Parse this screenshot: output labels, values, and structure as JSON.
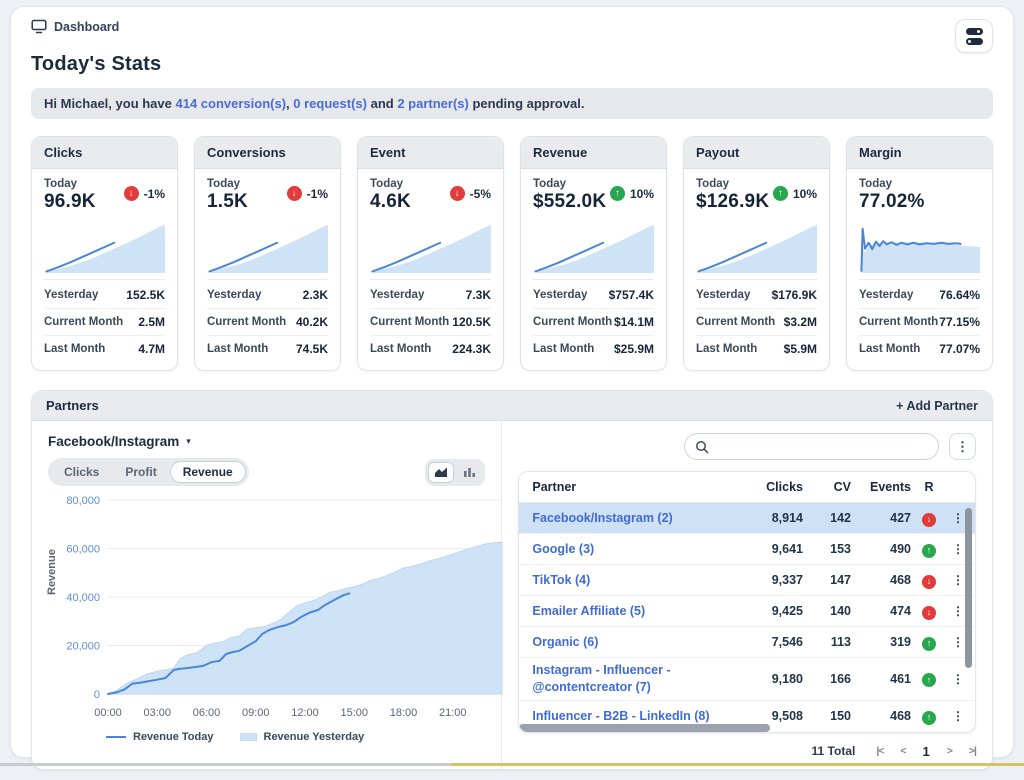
{
  "page": {
    "breadcrumb": "Dashboard",
    "title": "Today's Stats",
    "notification": {
      "prefix": "Hi Michael, you have ",
      "link1": "414 conversion(s)",
      "sep1": ", ",
      "link2": "0 request(s)",
      "sep2": " and ",
      "link3": "2 partner(s)",
      "suffix": " pending approval."
    }
  },
  "icons": {
    "caret": "▾",
    "kebab": "⋮",
    "arrow_up": "↑",
    "arrow_down": "↓"
  },
  "colors": {
    "accent_blue": "#4a86d8",
    "area_fill": "#cfe3f7",
    "area_edge": "#bcd6ef",
    "link_blue": "#4a6cd4",
    "red": "#e23b3b",
    "green": "#28a84e",
    "selected_row": "#cfe1f5",
    "ytick_blue": "#5e8ed8",
    "grid": "#e9edf1"
  },
  "stat_cards": [
    {
      "title": "Clicks",
      "today_label": "Today",
      "today_value": "96.9K",
      "badge": {
        "dir": "down",
        "value": "-1%"
      },
      "spark": "ramp",
      "rows": [
        {
          "label": "Yesterday",
          "value": "152.5K"
        },
        {
          "label": "Current Month",
          "value": "2.5M"
        },
        {
          "label": "Last Month",
          "value": "4.7M"
        }
      ]
    },
    {
      "title": "Conversions",
      "today_label": "Today",
      "today_value": "1.5K",
      "badge": {
        "dir": "down",
        "value": "-1%"
      },
      "spark": "ramp",
      "rows": [
        {
          "label": "Yesterday",
          "value": "2.3K"
        },
        {
          "label": "Current Month",
          "value": "40.2K"
        },
        {
          "label": "Last Month",
          "value": "74.5K"
        }
      ]
    },
    {
      "title": "Event",
      "today_label": "Today",
      "today_value": "4.6K",
      "badge": {
        "dir": "down",
        "value": "-5%"
      },
      "spark": "ramp",
      "rows": [
        {
          "label": "Yesterday",
          "value": "7.3K"
        },
        {
          "label": "Current Month",
          "value": "120.5K"
        },
        {
          "label": "Last Month",
          "value": "224.3K"
        }
      ]
    },
    {
      "title": "Revenue",
      "today_label": "Today",
      "today_value": "$552.0K",
      "badge": {
        "dir": "up",
        "value": "10%"
      },
      "spark": "ramp",
      "rows": [
        {
          "label": "Yesterday",
          "value": "$757.4K"
        },
        {
          "label": "Current Month",
          "value": "$14.1M"
        },
        {
          "label": "Last Month",
          "value": "$25.9M"
        }
      ]
    },
    {
      "title": "Payout",
      "today_label": "Today",
      "today_value": "$126.9K",
      "badge": {
        "dir": "up",
        "value": "10%"
      },
      "spark": "ramp",
      "rows": [
        {
          "label": "Yesterday",
          "value": "$176.9K"
        },
        {
          "label": "Current Month",
          "value": "$3.2M"
        },
        {
          "label": "Last Month",
          "value": "$5.9M"
        }
      ]
    },
    {
      "title": "Margin",
      "today_label": "Today",
      "today_value": "77.02%",
      "badge": null,
      "spark": "flat",
      "rows": [
        {
          "label": "Yesterday",
          "value": "76.64%"
        },
        {
          "label": "Current Month",
          "value": "77.15%"
        },
        {
          "label": "Last Month",
          "value": "77.07%"
        }
      ]
    }
  ],
  "sparks": {
    "ramp": {
      "line": [
        [
          2,
          97
        ],
        [
          12,
          89
        ],
        [
          22,
          80
        ],
        [
          32,
          70
        ],
        [
          42,
          60
        ],
        [
          52,
          50
        ],
        [
          58,
          44
        ]
      ],
      "area": [
        [
          2,
          98
        ],
        [
          10,
          93
        ],
        [
          18,
          89
        ],
        [
          26,
          84
        ],
        [
          34,
          78
        ],
        [
          42,
          71
        ],
        [
          50,
          63
        ],
        [
          58,
          55
        ],
        [
          66,
          47
        ],
        [
          74,
          39
        ],
        [
          82,
          30
        ],
        [
          90,
          21
        ],
        [
          96,
          14
        ],
        [
          100,
          11
        ]
      ]
    },
    "flat": {
      "line": [
        [
          2,
          96
        ],
        [
          3,
          18
        ],
        [
          5,
          55
        ],
        [
          8,
          44
        ],
        [
          11,
          56
        ],
        [
          14,
          42
        ],
        [
          17,
          50
        ],
        [
          20,
          41
        ],
        [
          23,
          47
        ],
        [
          27,
          43
        ],
        [
          31,
          48
        ],
        [
          35,
          44
        ],
        [
          40,
          47
        ],
        [
          45,
          44
        ],
        [
          50,
          47
        ],
        [
          56,
          45
        ],
        [
          62,
          46
        ],
        [
          68,
          44
        ],
        [
          74,
          46
        ],
        [
          80,
          45
        ],
        [
          84,
          46
        ]
      ],
      "area": [
        [
          2,
          96
        ],
        [
          3,
          50
        ],
        [
          5,
          62
        ],
        [
          8,
          50
        ],
        [
          12,
          46
        ],
        [
          18,
          44
        ],
        [
          24,
          43
        ],
        [
          32,
          44
        ],
        [
          40,
          44
        ],
        [
          48,
          44
        ],
        [
          56,
          44
        ],
        [
          64,
          44
        ],
        [
          72,
          45
        ],
        [
          80,
          48
        ],
        [
          88,
          50
        ],
        [
          100,
          52
        ]
      ]
    }
  },
  "partners": {
    "title": "Partners",
    "add_button": "+ Add Partner",
    "dropdown_label": "Facebook/Instagram",
    "tabs": [
      "Clicks",
      "Profit",
      "Revenue"
    ],
    "active_tab": "Revenue",
    "table": {
      "columns": [
        "Partner",
        "Clicks",
        "CV",
        "Events",
        "R"
      ],
      "rows": [
        {
          "partner": "Facebook/Instagram (2)",
          "clicks": "8,914",
          "cv": "142",
          "events": "427",
          "trend": "down",
          "selected": true
        },
        {
          "partner": "Google (3)",
          "clicks": "9,641",
          "cv": "153",
          "events": "490",
          "trend": "up",
          "selected": false
        },
        {
          "partner": "TikTok (4)",
          "clicks": "9,337",
          "cv": "147",
          "events": "468",
          "trend": "down",
          "selected": false
        },
        {
          "partner": "Emailer Affiliate (5)",
          "clicks": "9,425",
          "cv": "140",
          "events": "474",
          "trend": "down",
          "selected": false
        },
        {
          "partner": "Organic (6)",
          "clicks": "7,546",
          "cv": "113",
          "events": "319",
          "trend": "up",
          "selected": false
        },
        {
          "partner": "Instagram - Influencer - @contentcreator (7)",
          "clicks": "9,180",
          "cv": "166",
          "events": "461",
          "trend": "up",
          "selected": false
        },
        {
          "partner": "Influencer - B2B - LinkedIn (8)",
          "clicks": "9,508",
          "cv": "150",
          "events": "468",
          "trend": "up",
          "selected": false
        }
      ],
      "pagination": {
        "total": "11 Total",
        "first": "|<",
        "prev": "<",
        "page": "1",
        "next": ">",
        "last": ">|"
      }
    }
  },
  "chart_data": {
    "type": "area",
    "ylabel": "Revenue",
    "ylim": [
      0,
      80000
    ],
    "yticks": [
      0,
      20000,
      40000,
      60000,
      80000
    ],
    "ytick_labels": [
      "0",
      "20,000",
      "40,000",
      "60,000",
      "80,000"
    ],
    "xlim": [
      0,
      24
    ],
    "xtick_hours": [
      0,
      3,
      6,
      9,
      12,
      15,
      18,
      21
    ],
    "xtick_labels": [
      "00:00",
      "03:00",
      "06:00",
      "09:00",
      "12:00",
      "15:00",
      "18:00",
      "21:00"
    ],
    "grid": true,
    "legend_position": "bottom",
    "series": [
      {
        "name": "Revenue Today",
        "type": "line",
        "color": "#4a86d8",
        "x": [
          0,
          0.5,
          1,
          1.5,
          2,
          2.5,
          3,
          3.5,
          4,
          4.3,
          4.8,
          5.3,
          5.8,
          6.3,
          6.8,
          7.2,
          7.6,
          8,
          8.5,
          9,
          9.4,
          9.8,
          10.3,
          10.8,
          11.3,
          11.8,
          12.3,
          12.8,
          13.2,
          13.6,
          14,
          14.4,
          14.7
        ],
        "y": [
          0,
          600,
          1900,
          4300,
          4700,
          5300,
          5900,
          6600,
          9900,
          10300,
          10700,
          11100,
          11600,
          13100,
          13700,
          16500,
          17300,
          17800,
          19800,
          21800,
          24800,
          26300,
          27500,
          28300,
          29600,
          31900,
          33600,
          34700,
          36600,
          38100,
          39600,
          40900,
          41500
        ]
      },
      {
        "name": "Revenue Yesterday",
        "type": "area",
        "color": "#cfe3f7",
        "x": [
          0,
          0.6,
          1.2,
          1.8,
          2.4,
          3,
          3.5,
          4,
          4.4,
          4.9,
          5.4,
          6,
          6.5,
          7,
          7.5,
          8,
          8.5,
          9,
          9.5,
          10,
          10.5,
          11,
          11.5,
          12,
          12.5,
          13,
          13.5,
          14,
          14.5,
          15,
          15.5,
          16,
          16.5,
          17,
          17.5,
          18,
          18.5,
          19,
          19.5,
          20,
          20.5,
          21,
          21.5,
          22,
          22.5,
          23,
          23.5,
          24
        ],
        "y": [
          0,
          1800,
          4600,
          6300,
          8300,
          9400,
          9900,
          10600,
          14600,
          16300,
          16900,
          20100,
          20900,
          21600,
          23300,
          23900,
          26900,
          27300,
          27700,
          29100,
          30500,
          33600,
          36300,
          37600,
          38500,
          39900,
          41900,
          42500,
          43600,
          44300,
          45300,
          46900,
          47600,
          48900,
          50400,
          51900,
          52600,
          53500,
          54700,
          55600,
          56500,
          57700,
          58900,
          59900,
          60900,
          61900,
          62300,
          62600
        ]
      }
    ]
  }
}
